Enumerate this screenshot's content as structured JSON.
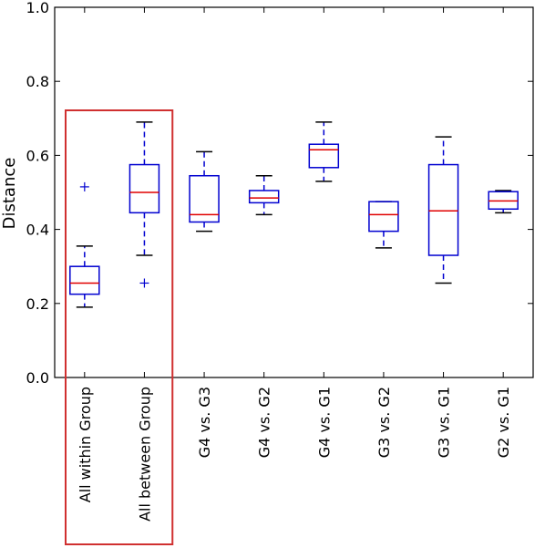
{
  "chart_data": {
    "type": "boxplot",
    "ylabel": "Distance",
    "ylim": [
      0.0,
      1.0
    ],
    "yticks": [
      "0.0",
      "0.2",
      "0.4",
      "0.6",
      "0.8",
      "1.0"
    ],
    "ytick_values": [
      0.0,
      0.2,
      0.4,
      0.6,
      0.8,
      1.0
    ],
    "grid": false,
    "highlight_color": "#d03030",
    "box_color": "#0000d0",
    "median_color": "#e00000",
    "highlighted_categories": [
      0,
      1
    ],
    "categories": [
      "All within Group",
      "All between Group",
      "G4 vs. G3",
      "G4 vs. G2",
      "G4 vs. G1",
      "G3 vs. G2",
      "G3 vs. G1",
      "G2 vs. G1"
    ],
    "boxes": [
      {
        "whislo": 0.19,
        "q1": 0.225,
        "med": 0.255,
        "q3": 0.3,
        "whishi": 0.355,
        "fliers": [
          0.515
        ]
      },
      {
        "whislo": 0.33,
        "q1": 0.445,
        "med": 0.5,
        "q3": 0.575,
        "whishi": 0.69,
        "fliers": [
          0.255
        ]
      },
      {
        "whislo": 0.395,
        "q1": 0.42,
        "med": 0.44,
        "q3": 0.545,
        "whishi": 0.61,
        "fliers": []
      },
      {
        "whislo": 0.44,
        "q1": 0.472,
        "med": 0.485,
        "q3": 0.505,
        "whishi": 0.545,
        "fliers": []
      },
      {
        "whislo": 0.53,
        "q1": 0.567,
        "med": 0.615,
        "q3": 0.63,
        "whishi": 0.69,
        "fliers": []
      },
      {
        "whislo": 0.35,
        "q1": 0.395,
        "med": 0.44,
        "q3": 0.475,
        "whishi": 0.475,
        "fliers": []
      },
      {
        "whislo": 0.255,
        "q1": 0.33,
        "med": 0.45,
        "q3": 0.575,
        "whishi": 0.65,
        "fliers": []
      },
      {
        "whislo": 0.445,
        "q1": 0.455,
        "med": 0.477,
        "q3": 0.502,
        "whishi": 0.505,
        "fliers": []
      }
    ]
  }
}
